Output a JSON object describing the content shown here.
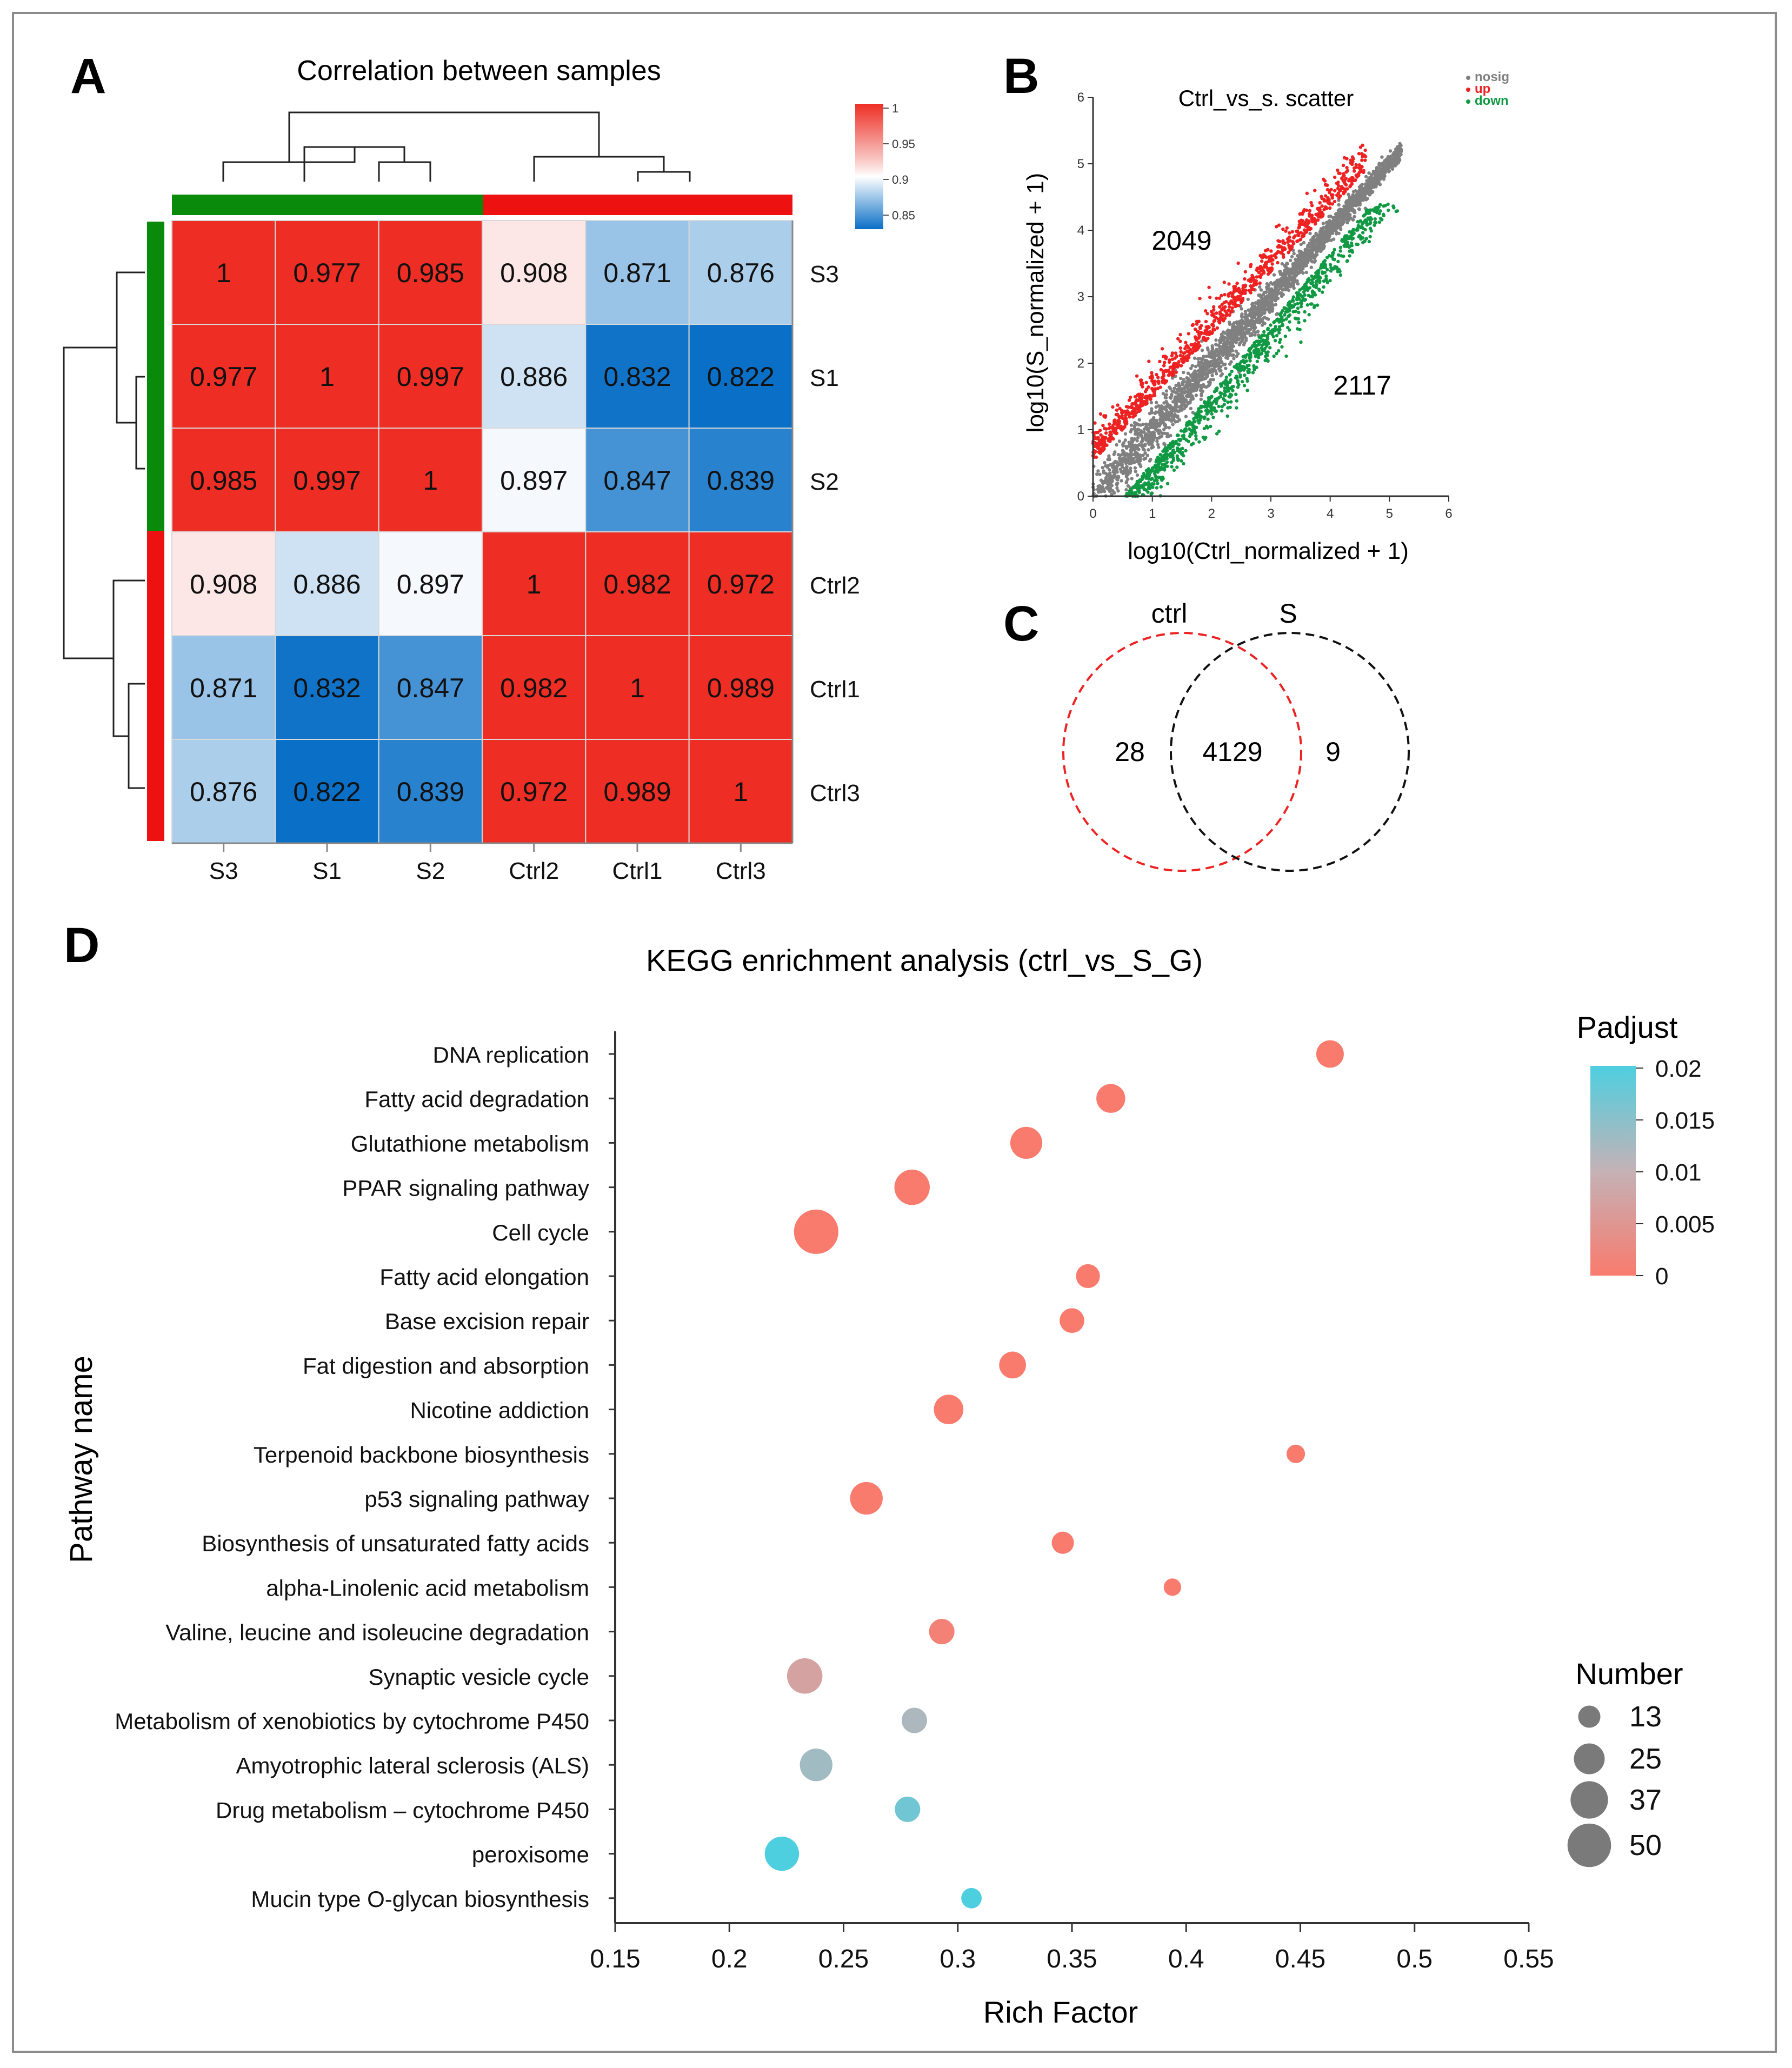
{
  "figure": {
    "panel_labels": {
      "A": "A",
      "B": "B",
      "C": "C",
      "D": "D"
    }
  },
  "chart_data": [
    {
      "type": "heatmap",
      "title": "Correlation between samples",
      "row_labels": [
        "S3",
        "S1",
        "S2",
        "Ctrl2",
        "Ctrl1",
        "Ctrl3"
      ],
      "col_labels": [
        "S3",
        "S1",
        "S2",
        "Ctrl2",
        "Ctrl1",
        "Ctrl3"
      ],
      "matrix": [
        [
          "1",
          "0.977",
          "0.985",
          "0.908",
          "0.871",
          "0.876"
        ],
        [
          "0.977",
          "1",
          "0.997",
          "0.886",
          "0.832",
          "0.822"
        ],
        [
          "0.985",
          "0.997",
          "1",
          "0.897",
          "0.847",
          "0.839"
        ],
        [
          "0.908",
          "0.886",
          "0.897",
          "1",
          "0.982",
          "0.972"
        ],
        [
          "0.871",
          "0.832",
          "0.847",
          "0.982",
          "1",
          "0.989"
        ],
        [
          "0.876",
          "0.822",
          "0.839",
          "0.972",
          "0.989",
          "1"
        ]
      ],
      "colorbar": {
        "ticks": [
          "1",
          "0.95",
          "0.9",
          "0.85"
        ],
        "low": "#0a6fc6",
        "mid": "#ffffff",
        "high": "#ee2e24"
      },
      "group_colors": [
        "#0a8a0a",
        "#ee1111"
      ],
      "groups": [
        {
          "members": [
            "S3",
            "S1",
            "S2"
          ],
          "color": "#0a8a0a"
        },
        {
          "members": [
            "Ctrl2",
            "Ctrl1",
            "Ctrl3"
          ],
          "color": "#ee1111"
        }
      ]
    },
    {
      "type": "scatter",
      "title": "Ctrl_vs_s. scatter",
      "xlabel": "log10(Ctrl_normalized + 1)",
      "ylabel": "log10(S_normalized + 1)",
      "xlim": [
        0,
        6
      ],
      "ylim": [
        0,
        6
      ],
      "xticks": [
        "0",
        "1",
        "2",
        "3",
        "4",
        "5",
        "6"
      ],
      "yticks": [
        "0",
        "1",
        "2",
        "3",
        "4",
        "5",
        "6"
      ],
      "legend": [
        {
          "label": "nosig",
          "color": "#808080"
        },
        {
          "label": "up",
          "color": "#ee2222"
        },
        {
          "label": "down",
          "color": "#119944"
        }
      ],
      "annotations": {
        "up_count": "2049",
        "down_count": "2117"
      }
    },
    {
      "type": "venn",
      "sets": [
        {
          "label": "ctrl",
          "color": "#ee2222"
        },
        {
          "label": "S",
          "color": "#000000"
        }
      ],
      "only_ctrl": "28",
      "intersection": "4129",
      "only_S": "9"
    },
    {
      "type": "scatter",
      "subtype": "bubble",
      "title": "KEGG enrichment analysis (ctrl_vs_S_G)",
      "xlabel": "Rich Factor",
      "ylabel": "Pathway name",
      "xlim": [
        0.15,
        0.55
      ],
      "xticks": [
        "0.15",
        "0.2",
        "0.25",
        "0.3",
        "0.35",
        "0.4",
        "0.45",
        "0.5",
        "0.55"
      ],
      "points": [
        {
          "pathway": "DNA replication",
          "rich_factor": 0.463,
          "number": 20,
          "padjust": 0.0
        },
        {
          "pathway": "Fatty acid degradation",
          "rich_factor": 0.367,
          "number": 22,
          "padjust": 0.0
        },
        {
          "pathway": "Glutathione metabolism",
          "rich_factor": 0.33,
          "number": 27,
          "padjust": 0.0
        },
        {
          "pathway": "PPAR signaling pathway",
          "rich_factor": 0.28,
          "number": 33,
          "padjust": 0.0
        },
        {
          "pathway": "Cell cycle",
          "rich_factor": 0.238,
          "number": 52,
          "padjust": 0.0
        },
        {
          "pathway": "Fatty acid elongation",
          "rich_factor": 0.357,
          "number": 15,
          "padjust": 0.0
        },
        {
          "pathway": "Base excision repair",
          "rich_factor": 0.35,
          "number": 16,
          "padjust": 0.0
        },
        {
          "pathway": "Fat digestion and absorption",
          "rich_factor": 0.324,
          "number": 19,
          "padjust": 0.0
        },
        {
          "pathway": "Nicotine addiction",
          "rich_factor": 0.296,
          "number": 23,
          "padjust": 0.0
        },
        {
          "pathway": "Terpenoid backbone biosynthesis",
          "rich_factor": 0.448,
          "number": 9,
          "padjust": 0.0
        },
        {
          "pathway": "p53 signaling pathway",
          "rich_factor": 0.26,
          "number": 28,
          "padjust": 0.0
        },
        {
          "pathway": "Biosynthesis of unsaturated fatty acids",
          "rich_factor": 0.346,
          "number": 13,
          "padjust": 0.0
        },
        {
          "pathway": "alpha-Linolenic acid metabolism",
          "rich_factor": 0.394,
          "number": 8,
          "padjust": 0.0
        },
        {
          "pathway": "Valine, leucine and isoleucine degradation",
          "rich_factor": 0.293,
          "number": 17,
          "padjust": 0.001
        },
        {
          "pathway": "Synaptic vesicle cycle",
          "rich_factor": 0.233,
          "number": 33,
          "padjust": 0.007
        },
        {
          "pathway": "Metabolism of xenobiotics by cytochrome P450",
          "rich_factor": 0.281,
          "number": 17,
          "padjust": 0.012
        },
        {
          "pathway": "Amyotrophic lateral sclerosis (ALS)",
          "rich_factor": 0.238,
          "number": 28,
          "padjust": 0.013
        },
        {
          "pathway": "Drug metabolism – cytochrome P450",
          "rich_factor": 0.278,
          "number": 17,
          "padjust": 0.017
        },
        {
          "pathway": "peroxisome",
          "rich_factor": 0.223,
          "number": 31,
          "padjust": 0.02
        },
        {
          "pathway": "Mucin type O-glycan biosynthesis",
          "rich_factor": 0.306,
          "number": 11,
          "padjust": 0.02
        }
      ],
      "color_legend": {
        "title": "Padjust",
        "ticks": [
          "0.02",
          "0.015",
          "0.01",
          "0.005",
          "0"
        ],
        "range": [
          0,
          0.02
        ],
        "low_color": "#f97b6e",
        "mid_color": "#c4b2b6",
        "high_color": "#4ecfe0"
      },
      "size_legend": {
        "title": "Number",
        "values": [
          13,
          25,
          37,
          50
        ],
        "labels": [
          "13",
          "25",
          "37",
          "50"
        ]
      }
    }
  ]
}
